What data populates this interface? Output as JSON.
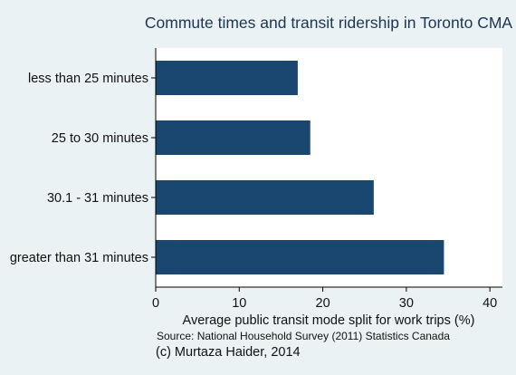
{
  "chart_data": {
    "type": "bar",
    "orientation": "horizontal",
    "title": "Commute times and transit ridership in Toronto CMA",
    "categories": [
      "less than 25 minutes",
      "25 to 30 minutes",
      "30.1 - 31 minutes",
      "greater than 31 minutes"
    ],
    "values": [
      17.0,
      18.5,
      26.1,
      34.5
    ],
    "xlabel": "Average public transit mode split for work trips (%)",
    "ylabel": "",
    "xlim": [
      0,
      41.5
    ],
    "xticks": [
      "0",
      "10",
      "20",
      "30",
      "40"
    ],
    "grid": false,
    "legend": "none",
    "bar_color": "#1a476f",
    "plot_background": "#ffffff",
    "background": "#eaf2f3"
  },
  "note": "Source: National Household Survey (2011) Statistics Canada",
  "caption": "(c) Murtaza Haider, 2014"
}
